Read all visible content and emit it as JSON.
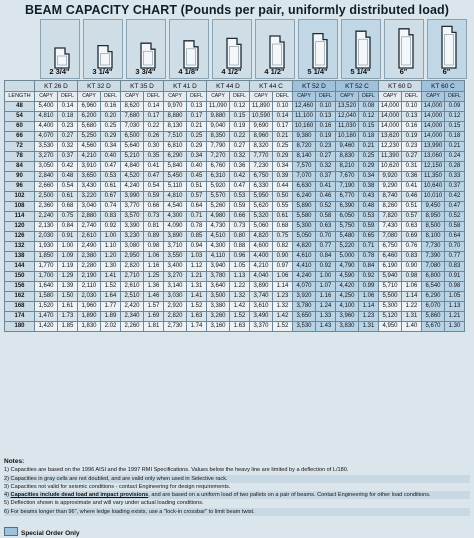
{
  "title": "BEAM CAPACITY CHART (Pounds per pair, uniformly distributed load)",
  "length_label": "LENGTH",
  "capy_label": "CAPY",
  "defl_label": "DEFL",
  "beams": [
    {
      "size": "2 3/4\"",
      "model": "KT 26 D",
      "special": false
    },
    {
      "size": "3 1/4\"",
      "model": "KT 32 D",
      "special": false
    },
    {
      "size": "3 3/4\"",
      "model": "KT 35 D",
      "special": false
    },
    {
      "size": "4 1/8\"",
      "model": "KT 41 D",
      "special": false
    },
    {
      "size": "4 1/2\"",
      "model": "KT 44 D",
      "special": false
    },
    {
      "size": "4 1/2\"",
      "model": "KT 44 C",
      "special": false
    },
    {
      "size": "5 1/4\"",
      "model": "KT 52 D",
      "special": true
    },
    {
      "size": "5 1/4\"",
      "model": "KT 52 C",
      "special": true
    },
    {
      "size": "6\"",
      "model": "KT 60 D",
      "special": false
    },
    {
      "size": "6\"",
      "model": "KT 60 C",
      "special": true
    }
  ],
  "rows": [
    [
      "48",
      "5,400",
      "0.14",
      "6,960",
      "0.16",
      "8,620",
      "0.14",
      "9,970",
      "0.13",
      "11,090",
      "0.12",
      "11,890",
      "0.10",
      "12,460",
      "0.10",
      "13,520",
      "0.08",
      "14,000",
      "0.10",
      "14,000",
      "0.09"
    ],
    [
      "54",
      "4,810",
      "0.18",
      "6,200",
      "0.20",
      "7,680",
      "0.17",
      "8,880",
      "0.17",
      "9,880",
      "0.15",
      "10,590",
      "0.14",
      "11,100",
      "0.13",
      "12,040",
      "0.12",
      "14,000",
      "0.13",
      "14,000",
      "0.12"
    ],
    [
      "60",
      "4,400",
      "0.23",
      "5,680",
      "0.25",
      "7,030",
      "0.22",
      "8,130",
      "0.21",
      "9,040",
      "0.19",
      "9,690",
      "0.17",
      "10,160",
      "0.16",
      "11,030",
      "0.15",
      "14,000",
      "0.16",
      "14,000",
      "0.15"
    ],
    [
      "66",
      "4,070",
      "0.27",
      "5,250",
      "0.29",
      "6,500",
      "0.26",
      "7,510",
      "0.25",
      "8,350",
      "0.22",
      "8,960",
      "0.21",
      "9,380",
      "0.19",
      "10,180",
      "0.18",
      "13,620",
      "0.19",
      "14,000",
      "0.18"
    ],
    [
      "72",
      "3,530",
      "0.32",
      "4,560",
      "0.34",
      "5,640",
      "0.30",
      "6,810",
      "0.29",
      "7,790",
      "0.27",
      "8,320",
      "0.25",
      "8,720",
      "0.23",
      "9,460",
      "0.21",
      "12,230",
      "0.23",
      "13,990",
      "0.21"
    ],
    [
      "78",
      "3,270",
      "0.37",
      "4,210",
      "0.40",
      "5,210",
      "0.35",
      "6,290",
      "0.34",
      "7,270",
      "0.32",
      "7,770",
      "0.29",
      "8,140",
      "0.27",
      "8,830",
      "0.25",
      "11,390",
      "0.27",
      "13,060",
      "0.24"
    ],
    [
      "84",
      "3,050",
      "0.42",
      "3,910",
      "0.47",
      "4,840",
      "0.41",
      "5,840",
      "0.40",
      "6,760",
      "0.36",
      "7,230",
      "0.34",
      "7,570",
      "0.32",
      "8,210",
      "0.29",
      "10,620",
      "0.31",
      "12,150",
      "0.28"
    ],
    [
      "90",
      "2,840",
      "0.48",
      "3,650",
      "0.53",
      "4,520",
      "0.47",
      "5,450",
      "0.45",
      "6,310",
      "0.42",
      "6,750",
      "0.39",
      "7,070",
      "0.37",
      "7,670",
      "0.34",
      "9,920",
      "0.36",
      "11,350",
      "0.33"
    ],
    [
      "96",
      "2,660",
      "0.54",
      "3,430",
      "0.61",
      "4,240",
      "0.54",
      "5,110",
      "0.51",
      "5,920",
      "0.47",
      "6,330",
      "0.44",
      "6,630",
      "0.41",
      "7,190",
      "0.38",
      "9,290",
      "0.41",
      "10,640",
      "0.37"
    ],
    [
      "102",
      "2,500",
      "0.61",
      "3,220",
      "0.67",
      "3,990",
      "0.59",
      "4,810",
      "0.57",
      "5,570",
      "0.53",
      "5,950",
      "0.50",
      "6,240",
      "0.46",
      "6,770",
      "0.43",
      "8,740",
      "0.46",
      "10,010",
      "0.42"
    ],
    [
      "108",
      "2,360",
      "0.68",
      "3,040",
      "0.74",
      "3,770",
      "0.66",
      "4,540",
      "0.64",
      "5,260",
      "0.59",
      "5,620",
      "0.55",
      "5,890",
      "0.52",
      "6,390",
      "0.48",
      "8,260",
      "0.51",
      "9,450",
      "0.47"
    ],
    [
      "114",
      "2,240",
      "0.75",
      "2,880",
      "0.83",
      "3,570",
      "0.73",
      "4,300",
      "0.71",
      "4,980",
      "0.66",
      "5,320",
      "0.61",
      "5,580",
      "0.58",
      "6,050",
      "0.53",
      "7,820",
      "0.57",
      "8,950",
      "0.52"
    ],
    [
      "120",
      "2,130",
      "0.84",
      "2,740",
      "0.92",
      "3,390",
      "0.81",
      "4,090",
      "0.78",
      "4,730",
      "0.73",
      "5,060",
      "0.68",
      "5,300",
      "0.63",
      "5,750",
      "0.59",
      "7,430",
      "0.63",
      "8,500",
      "0.58"
    ],
    [
      "126",
      "2,030",
      "0.91",
      "2,610",
      "1.00",
      "3,230",
      "0.89",
      "3,890",
      "0.85",
      "4,510",
      "0.80",
      "4,820",
      "0.75",
      "5,050",
      "0.70",
      "5,480",
      "0.65",
      "7,080",
      "0.69",
      "8,100",
      "0.64"
    ],
    [
      "132",
      "1,930",
      "1.00",
      "2,490",
      "1.10",
      "3,080",
      "0.98",
      "3,710",
      "0.94",
      "4,300",
      "0.88",
      "4,600",
      "0.82",
      "4,820",
      "0.77",
      "5,220",
      "0.71",
      "6,750",
      "0.76",
      "7,730",
      "0.70"
    ],
    [
      "138",
      "1,850",
      "1.09",
      "2,380",
      "1.20",
      "2,950",
      "1.06",
      "3,550",
      "1.03",
      "4,110",
      "0.96",
      "4,400",
      "0.90",
      "4,610",
      "0.84",
      "5,000",
      "0.78",
      "6,460",
      "0.83",
      "7,390",
      "0.77"
    ],
    [
      "144",
      "1,770",
      "1.19",
      "2,280",
      "1.30",
      "2,820",
      "1.16",
      "3,400",
      "1.12",
      "3,940",
      "1.05",
      "4,210",
      "0.97",
      "4,410",
      "0.92",
      "4,790",
      "0.84",
      "6,190",
      "0.90",
      "7,080",
      "0.83"
    ],
    [
      "150",
      "1,700",
      "1.29",
      "2,190",
      "1.41",
      "2,710",
      "1.25",
      "3,270",
      "1.21",
      "3,780",
      "1.13",
      "4,040",
      "1.06",
      "4,240",
      "1.00",
      "4,590",
      "0.92",
      "5,940",
      "0.98",
      "6,800",
      "0.91"
    ],
    [
      "156",
      "1,640",
      "1.39",
      "2,110",
      "1.52",
      "2,610",
      "1.36",
      "3,140",
      "1.31",
      "3,640",
      "1.22",
      "3,890",
      "1.14",
      "4,070",
      "1.07",
      "4,420",
      "0.99",
      "5,710",
      "1.06",
      "6,540",
      "0.98"
    ],
    [
      "162",
      "1,580",
      "1.50",
      "2,030",
      "1.64",
      "2,510",
      "1.46",
      "3,030",
      "1.41",
      "3,500",
      "1.32",
      "3,740",
      "1.23",
      "3,920",
      "1.16",
      "4,250",
      "1.06",
      "5,500",
      "1.14",
      "6,290",
      "1.05"
    ],
    [
      "168",
      "1,520",
      "1.61",
      "1,960",
      "1.77",
      "2,420",
      "1.57",
      "2,920",
      "1.52",
      "3,380",
      "1.42",
      "3,610",
      "1.32",
      "3,780",
      "1.24",
      "4,100",
      "1.14",
      "5,300",
      "1.22",
      "6,070",
      "1.13"
    ],
    [
      "174",
      "1,470",
      "1.73",
      "1,890",
      "1.89",
      "2,340",
      "1.69",
      "2,820",
      "1.63",
      "3,260",
      "1.52",
      "3,490",
      "1.42",
      "3,650",
      "1.33",
      "3,960",
      "1.23",
      "5,120",
      "1.31",
      "5,860",
      "1.21"
    ],
    [
      "180",
      "1,420",
      "1.85",
      "1,830",
      "2.02",
      "2,260",
      "1.81",
      "2,730",
      "1.74",
      "3,160",
      "1.63",
      "3,370",
      "1.52",
      "3,530",
      "1.43",
      "3,830",
      "1.31",
      "4,950",
      "1.40",
      "5,670",
      "1.30"
    ]
  ],
  "notes": {
    "heading": "Notes:",
    "items": [
      "1)  Capacities are based on the 1996 AISI and the 1997 RMI Specifications.  Values below the heavy line are limited by a deflection of L/180.",
      "2)  Capacities in gray cells are not doubled, and are valid only when used in Selective rack.",
      "3)  Capacities not valid for seismic conditions - contact Engineering for design requirements.",
      "4)  Capacities include dead load and impact provisions, and are based on a uniform load of two pallets on a pair of beams. Contact Engineering for other load conditions.",
      "5)  Deflection shown is approximate and will vary under actual loading conditions.",
      "6)  For beams longer than 96\", where ledge loading exists, use a \"lock-in crossbar\" to limit beam twist."
    ],
    "note4_underlined": "Capacities include dead load and impact provisions"
  },
  "legend": {
    "label": "Special Order Only",
    "color": "#9fc1db"
  }
}
